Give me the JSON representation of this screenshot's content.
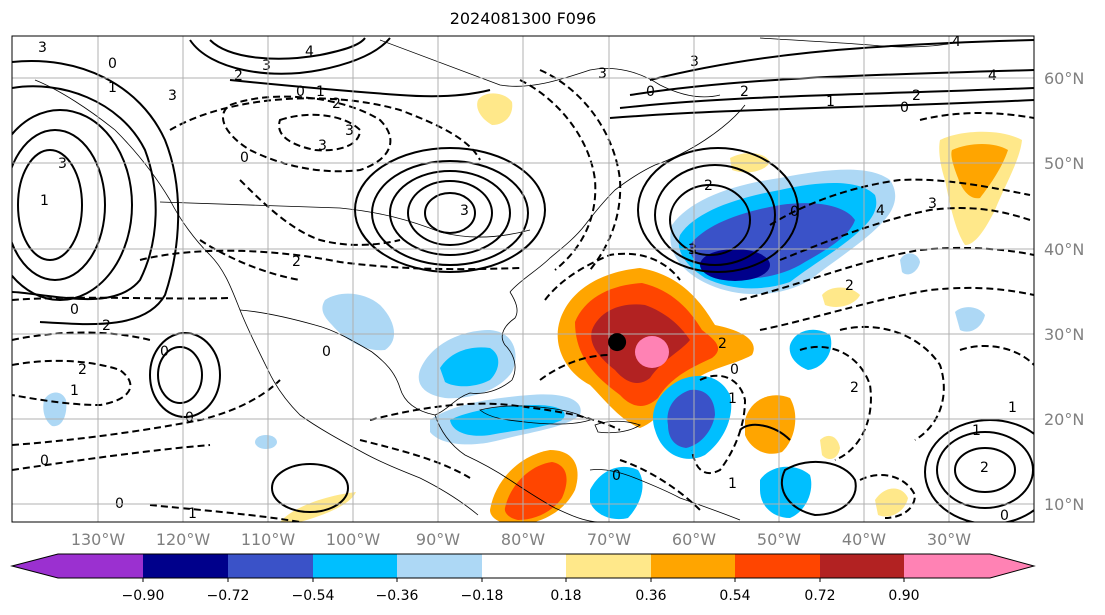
{
  "title": "2024081300 F096",
  "lat_labels": [
    "60°N",
    "50°N",
    "40°N",
    "30°N",
    "20°N",
    "10°N"
  ],
  "lon_labels": [
    "130°W",
    "120°W",
    "110°W",
    "100°W",
    "90°W",
    "80°W",
    "70°W",
    "60°W",
    "50°W",
    "40°W",
    "30°W"
  ],
  "colorbar": {
    "ticks": [
      "−0.90",
      "−0.72",
      "−0.54",
      "−0.36",
      "−0.18",
      "0.18",
      "0.36",
      "0.54",
      "0.72",
      "0.90"
    ],
    "colors": [
      "#9b30d0",
      "#00008b",
      "#3a52c8",
      "#00bfff",
      "#add8f5",
      "#ffffff",
      "#ffe88a",
      "#ffa500",
      "#ff4500",
      "#b22222",
      "#ff82b4"
    ]
  },
  "contour_labels": [
    "3",
    "0",
    "4",
    "3",
    "2",
    "3",
    "0",
    "1",
    "2",
    "3",
    "0",
    "1",
    "4",
    "3",
    "2",
    "0",
    "3",
    "0",
    "2",
    "3",
    "4",
    "3",
    "3",
    "2",
    "1",
    "0",
    "2",
    "1",
    "0",
    "0",
    "0",
    "1",
    "0",
    "0",
    "2",
    "2",
    "3",
    "2",
    "0",
    "2",
    "3",
    "4",
    "1",
    "0",
    "2",
    "1",
    "0",
    "1",
    "2",
    "1",
    "0",
    "1"
  ],
  "marker": {
    "lon": -69,
    "lat": 29
  }
}
